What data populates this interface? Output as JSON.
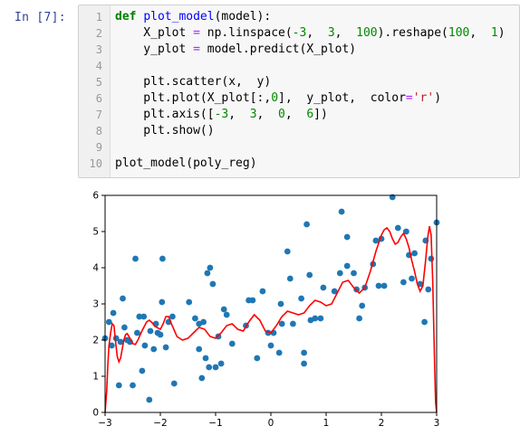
{
  "prompt": "In  [7]:",
  "code_lines": [
    {
      "n": "1",
      "parts": [
        {
          "t": "def",
          "c": "kw"
        },
        {
          "t": " "
        },
        {
          "t": "plot_model",
          "c": "fn"
        },
        {
          "t": "(model):"
        }
      ]
    },
    {
      "n": "2",
      "parts": [
        {
          "t": "    X_plot "
        },
        {
          "t": "=",
          "c": "op"
        },
        {
          "t": " np.linspace("
        },
        {
          "t": "-3",
          "c": "num"
        },
        {
          "t": ",  "
        },
        {
          "t": "3",
          "c": "num"
        },
        {
          "t": ",  "
        },
        {
          "t": "100",
          "c": "num"
        },
        {
          "t": ").reshape("
        },
        {
          "t": "100",
          "c": "num"
        },
        {
          "t": ",  "
        },
        {
          "t": "1",
          "c": "num"
        },
        {
          "t": ")"
        }
      ]
    },
    {
      "n": "3",
      "parts": [
        {
          "t": "    y_plot "
        },
        {
          "t": "=",
          "c": "op"
        },
        {
          "t": " model.predict(X_plot)"
        }
      ]
    },
    {
      "n": "4",
      "parts": []
    },
    {
      "n": "5",
      "parts": [
        {
          "t": "    plt.scatter(x,  y)"
        }
      ]
    },
    {
      "n": "6",
      "parts": [
        {
          "t": "    plt.plot(X_plot[:,"
        },
        {
          "t": "0",
          "c": "num"
        },
        {
          "t": "],  y_plot,  color"
        },
        {
          "t": "=",
          "c": "op"
        },
        {
          "t": "'r'",
          "c": "str"
        },
        {
          "t": ")"
        }
      ]
    },
    {
      "n": "7",
      "parts": [
        {
          "t": "    plt.axis(["
        },
        {
          "t": "-3",
          "c": "num"
        },
        {
          "t": ",  "
        },
        {
          "t": "3",
          "c": "num"
        },
        {
          "t": ",  "
        },
        {
          "t": "0",
          "c": "num"
        },
        {
          "t": ",  "
        },
        {
          "t": "6",
          "c": "num"
        },
        {
          "t": "])"
        }
      ]
    },
    {
      "n": "8",
      "parts": [
        {
          "t": "    plt.show()"
        }
      ]
    },
    {
      "n": "9",
      "parts": []
    },
    {
      "n": "10",
      "parts": [
        {
          "t": "plot_model(poly_reg)"
        }
      ]
    }
  ],
  "chart_data": {
    "type": "scatter",
    "xlim": [
      -3,
      3
    ],
    "ylim": [
      0,
      6
    ],
    "x_ticks": [
      {
        "v": -3,
        "label": "−3"
      },
      {
        "v": -2,
        "label": "−2"
      },
      {
        "v": -1,
        "label": "−1"
      },
      {
        "v": 0,
        "label": "0"
      },
      {
        "v": 1,
        "label": "1"
      },
      {
        "v": 2,
        "label": "2"
      },
      {
        "v": 3,
        "label": "3"
      }
    ],
    "y_ticks": [
      {
        "v": 0,
        "label": "0"
      },
      {
        "v": 1,
        "label": "1"
      },
      {
        "v": 2,
        "label": "2"
      },
      {
        "v": 3,
        "label": "3"
      },
      {
        "v": 4,
        "label": "4"
      },
      {
        "v": 5,
        "label": "5"
      },
      {
        "v": 6,
        "label": "6"
      }
    ],
    "grid": false,
    "scatter_color": "#1f77b4",
    "line_color": "#ff0000",
    "points": [
      [
        -3.0,
        2.05
      ],
      [
        -2.93,
        2.5
      ],
      [
        -2.88,
        1.85
      ],
      [
        -2.85,
        2.75
      ],
      [
        -2.8,
        2.05
      ],
      [
        -2.75,
        0.75
      ],
      [
        -2.72,
        1.95
      ],
      [
        -2.68,
        3.15
      ],
      [
        -2.65,
        2.35
      ],
      [
        -2.6,
        2.0
      ],
      [
        -2.55,
        1.95
      ],
      [
        -2.5,
        0.75
      ],
      [
        -2.45,
        4.25
      ],
      [
        -2.42,
        2.2
      ],
      [
        -2.38,
        2.65
      ],
      [
        -2.33,
        1.15
      ],
      [
        -2.3,
        2.65
      ],
      [
        -2.28,
        1.85
      ],
      [
        -2.2,
        0.35
      ],
      [
        -2.18,
        2.25
      ],
      [
        -2.12,
        1.75
      ],
      [
        -2.08,
        2.45
      ],
      [
        -2.05,
        2.2
      ],
      [
        -2.0,
        2.15
      ],
      [
        -1.97,
        3.05
      ],
      [
        -1.96,
        4.25
      ],
      [
        -1.9,
        1.8
      ],
      [
        -1.85,
        2.5
      ],
      [
        -1.78,
        2.65
      ],
      [
        -1.75,
        0.8
      ],
      [
        -1.48,
        3.05
      ],
      [
        -1.37,
        2.6
      ],
      [
        -1.3,
        1.75
      ],
      [
        -1.3,
        2.45
      ],
      [
        -1.25,
        0.95
      ],
      [
        -1.22,
        2.5
      ],
      [
        -1.18,
        1.5
      ],
      [
        -1.15,
        3.85
      ],
      [
        -1.12,
        1.25
      ],
      [
        -1.1,
        4.0
      ],
      [
        -1.05,
        3.55
      ],
      [
        -1.0,
        1.25
      ],
      [
        -0.95,
        2.1
      ],
      [
        -0.9,
        1.35
      ],
      [
        -0.85,
        2.85
      ],
      [
        -0.8,
        2.7
      ],
      [
        -0.7,
        1.9
      ],
      [
        -0.45,
        2.4
      ],
      [
        -0.4,
        3.1
      ],
      [
        -0.33,
        3.1
      ],
      [
        -0.25,
        1.5
      ],
      [
        -0.15,
        3.35
      ],
      [
        -0.05,
        2.2
      ],
      [
        0.0,
        1.85
      ],
      [
        0.05,
        2.2
      ],
      [
        0.15,
        1.65
      ],
      [
        0.18,
        3.0
      ],
      [
        0.2,
        2.45
      ],
      [
        0.3,
        4.45
      ],
      [
        0.35,
        3.7
      ],
      [
        0.4,
        2.45
      ],
      [
        0.55,
        3.15
      ],
      [
        0.6,
        1.35
      ],
      [
        0.6,
        1.65
      ],
      [
        0.65,
        5.2
      ],
      [
        0.7,
        3.8
      ],
      [
        0.72,
        2.55
      ],
      [
        0.8,
        2.6
      ],
      [
        0.9,
        2.6
      ],
      [
        0.95,
        3.45
      ],
      [
        1.15,
        3.35
      ],
      [
        1.25,
        3.85
      ],
      [
        1.28,
        5.55
      ],
      [
        1.38,
        4.85
      ],
      [
        1.38,
        4.05
      ],
      [
        1.5,
        3.85
      ],
      [
        1.55,
        3.4
      ],
      [
        1.6,
        2.6
      ],
      [
        1.65,
        2.95
      ],
      [
        1.7,
        3.45
      ],
      [
        1.85,
        4.1
      ],
      [
        1.9,
        4.75
      ],
      [
        1.95,
        3.5
      ],
      [
        2.0,
        4.8
      ],
      [
        2.05,
        3.5
      ],
      [
        2.2,
        5.95
      ],
      [
        2.3,
        5.1
      ],
      [
        2.4,
        3.6
      ],
      [
        2.45,
        5.0
      ],
      [
        2.5,
        4.35
      ],
      [
        2.55,
        3.7
      ],
      [
        2.6,
        4.4
      ],
      [
        2.7,
        3.55
      ],
      [
        2.78,
        2.5
      ],
      [
        2.8,
        4.75
      ],
      [
        2.85,
        3.4
      ],
      [
        2.9,
        4.25
      ],
      [
        3.0,
        5.25
      ]
    ],
    "line": [
      [
        -3.0,
        0.0
      ],
      [
        -2.97,
        0.6
      ],
      [
        -2.95,
        1.3
      ],
      [
        -2.93,
        1.85
      ],
      [
        -2.9,
        2.2
      ],
      [
        -2.87,
        2.45
      ],
      [
        -2.84,
        2.4
      ],
      [
        -2.81,
        1.95
      ],
      [
        -2.78,
        1.55
      ],
      [
        -2.75,
        1.4
      ],
      [
        -2.72,
        1.5
      ],
      [
        -2.69,
        1.75
      ],
      [
        -2.66,
        2.0
      ],
      [
        -2.63,
        2.15
      ],
      [
        -2.6,
        2.18
      ],
      [
        -2.55,
        2.05
      ],
      [
        -2.5,
        1.9
      ],
      [
        -2.45,
        1.88
      ],
      [
        -2.4,
        2.02
      ],
      [
        -2.35,
        2.2
      ],
      [
        -2.3,
        2.35
      ],
      [
        -2.25,
        2.5
      ],
      [
        -2.2,
        2.55
      ],
      [
        -2.15,
        2.48
      ],
      [
        -2.1,
        2.38
      ],
      [
        -2.0,
        2.3
      ],
      [
        -1.95,
        2.45
      ],
      [
        -1.9,
        2.65
      ],
      [
        -1.85,
        2.65
      ],
      [
        -1.8,
        2.45
      ],
      [
        -1.7,
        2.1
      ],
      [
        -1.6,
        2.0
      ],
      [
        -1.5,
        2.05
      ],
      [
        -1.4,
        2.2
      ],
      [
        -1.3,
        2.35
      ],
      [
        -1.2,
        2.3
      ],
      [
        -1.1,
        2.1
      ],
      [
        -1.0,
        2.05
      ],
      [
        -0.9,
        2.2
      ],
      [
        -0.8,
        2.4
      ],
      [
        -0.7,
        2.45
      ],
      [
        -0.6,
        2.3
      ],
      [
        -0.5,
        2.25
      ],
      [
        -0.4,
        2.5
      ],
      [
        -0.3,
        2.7
      ],
      [
        -0.2,
        2.55
      ],
      [
        -0.1,
        2.25
      ],
      [
        0.0,
        2.2
      ],
      [
        0.1,
        2.4
      ],
      [
        0.2,
        2.65
      ],
      [
        0.3,
        2.8
      ],
      [
        0.4,
        2.75
      ],
      [
        0.5,
        2.7
      ],
      [
        0.6,
        2.75
      ],
      [
        0.7,
        2.95
      ],
      [
        0.8,
        3.1
      ],
      [
        0.9,
        3.05
      ],
      [
        1.0,
        2.95
      ],
      [
        1.1,
        3.0
      ],
      [
        1.2,
        3.3
      ],
      [
        1.3,
        3.6
      ],
      [
        1.4,
        3.65
      ],
      [
        1.5,
        3.45
      ],
      [
        1.6,
        3.3
      ],
      [
        1.7,
        3.45
      ],
      [
        1.8,
        3.9
      ],
      [
        1.9,
        4.45
      ],
      [
        2.0,
        4.9
      ],
      [
        2.05,
        5.05
      ],
      [
        2.1,
        5.1
      ],
      [
        2.15,
        5.0
      ],
      [
        2.2,
        4.8
      ],
      [
        2.25,
        4.65
      ],
      [
        2.3,
        4.7
      ],
      [
        2.35,
        4.85
      ],
      [
        2.4,
        4.95
      ],
      [
        2.45,
        4.8
      ],
      [
        2.5,
        4.55
      ],
      [
        2.55,
        4.2
      ],
      [
        2.6,
        3.9
      ],
      [
        2.65,
        3.55
      ],
      [
        2.7,
        3.35
      ],
      [
        2.75,
        3.5
      ],
      [
        2.8,
        4.2
      ],
      [
        2.84,
        4.85
      ],
      [
        2.87,
        5.15
      ],
      [
        2.9,
        4.9
      ],
      [
        2.93,
        3.6
      ],
      [
        2.96,
        1.5
      ],
      [
        2.98,
        0.3
      ],
      [
        3.0,
        0.0
      ]
    ]
  }
}
